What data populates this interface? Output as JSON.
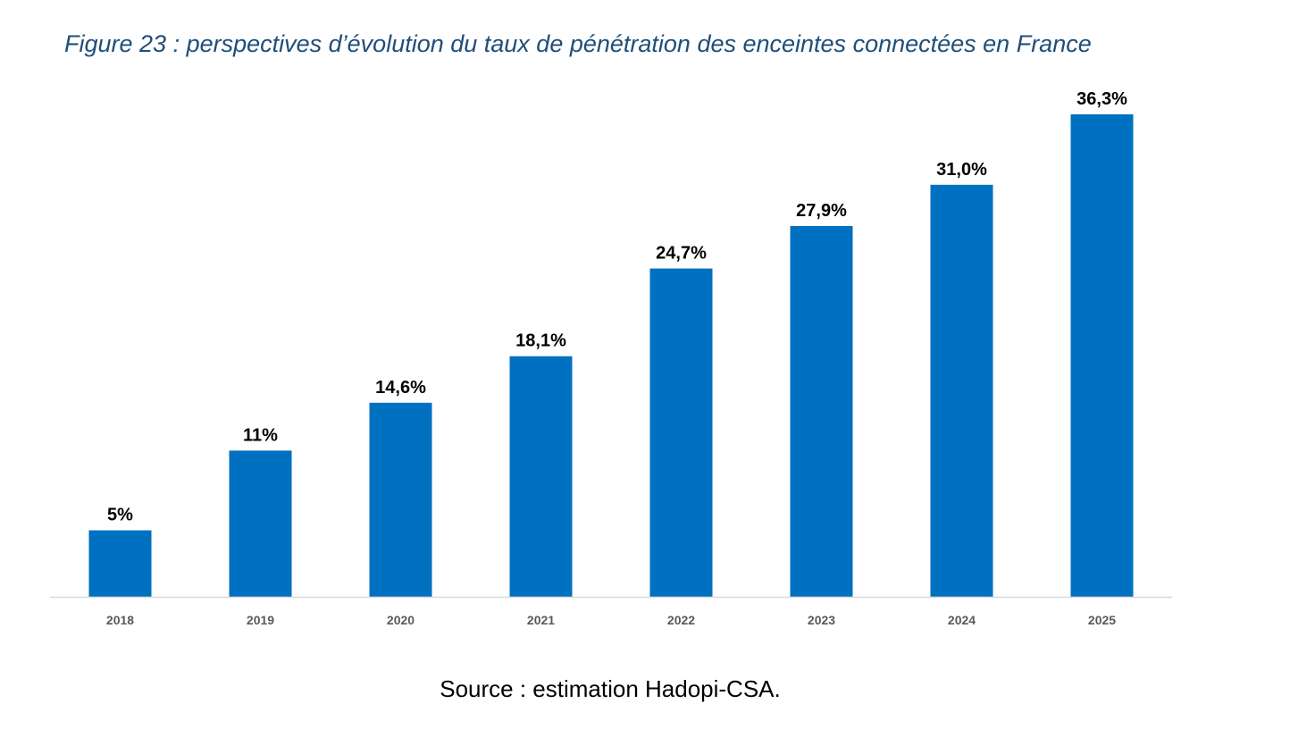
{
  "figure": {
    "title": "Figure 23 : perspectives d’évolution du taux de pénétration des enceintes connectées en France",
    "source": "Source : estimation Hadopi-CSA."
  },
  "chart_data": {
    "type": "bar",
    "title": "Figure 23 : perspectives d’évolution du taux de pénétration des enceintes connectées en France",
    "categories": [
      "2018",
      "2019",
      "2020",
      "2021",
      "2022",
      "2023",
      "2024",
      "2025"
    ],
    "values": [
      5,
      11,
      14.6,
      18.1,
      24.7,
      27.9,
      31.0,
      36.3
    ],
    "data_labels": [
      "5%",
      "11%",
      "14,6%",
      "18,1%",
      "24,7%",
      "27,9%",
      "31,0%",
      "36,3%"
    ],
    "xlabel": "",
    "ylabel": "",
    "ylim": [
      0,
      36.3
    ],
    "grid": false,
    "legend": "none",
    "colors": {
      "bar": "#0070c0",
      "axis": "#d9d9d9",
      "title": "#1f4e79",
      "tick_label": "#595959",
      "data_label": "#000000"
    }
  }
}
